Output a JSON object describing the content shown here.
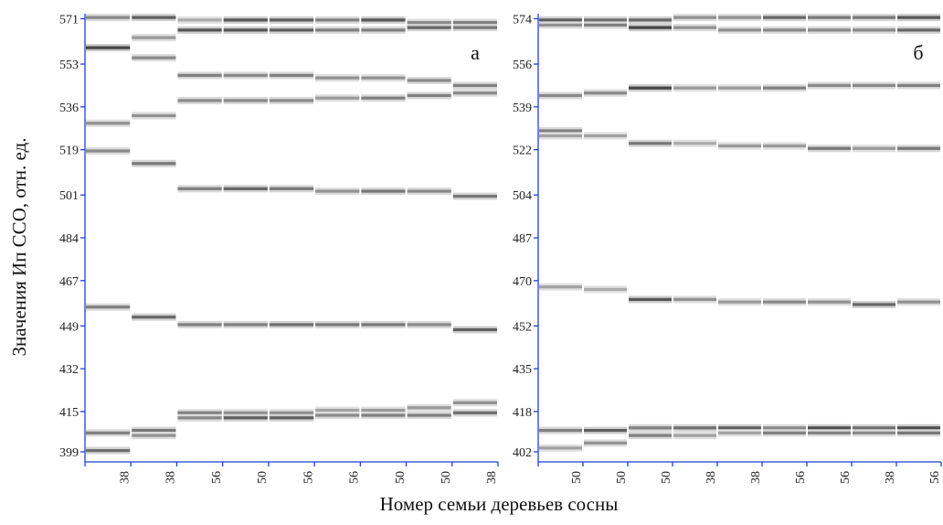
{
  "figure": {
    "ylabel": "Значения Ип ССО, отн. ед.",
    "xlabel": "Номер семьи деревьев сосны"
  },
  "chart_data": [
    {
      "type": "gel",
      "panel_label": "а",
      "yticks": [
        399,
        415,
        432,
        449,
        467,
        484,
        501,
        519,
        536,
        553,
        571
      ],
      "ylim": [
        395,
        573
      ],
      "lanes": [
        "38",
        "38",
        "56",
        "50",
        "56",
        "56",
        "50",
        "50",
        "38"
      ],
      "bands": [
        [
          [
            571.5,
            0.55
          ],
          [
            559.5,
            0.95
          ],
          [
            529.5,
            0.5
          ],
          [
            518.5,
            0.55
          ],
          [
            456.5,
            0.6
          ],
          [
            406.5,
            0.6
          ],
          [
            399.5,
            0.7
          ]
        ],
        [
          [
            571.5,
            0.8
          ],
          [
            563.5,
            0.45
          ],
          [
            555.5,
            0.55
          ],
          [
            532.5,
            0.5
          ],
          [
            513.5,
            0.65
          ],
          [
            452.5,
            0.75
          ],
          [
            407.5,
            0.65
          ],
          [
            405.5,
            0.5
          ]
        ],
        [
          [
            570.5,
            0.35
          ],
          [
            566.5,
            0.85
          ],
          [
            548.5,
            0.6
          ],
          [
            538.5,
            0.55
          ],
          [
            503.5,
            0.6
          ],
          [
            449.5,
            0.6
          ],
          [
            414.5,
            0.6
          ],
          [
            412.5,
            0.55
          ]
        ],
        [
          [
            570.5,
            0.85
          ],
          [
            566.5,
            0.85
          ],
          [
            548.5,
            0.55
          ],
          [
            538.5,
            0.55
          ],
          [
            503.5,
            0.75
          ],
          [
            449.5,
            0.6
          ],
          [
            414.5,
            0.5
          ],
          [
            412.5,
            0.8
          ]
        ],
        [
          [
            570.5,
            0.8
          ],
          [
            566.5,
            0.8
          ],
          [
            548.5,
            0.6
          ],
          [
            538.5,
            0.55
          ],
          [
            503.5,
            0.65
          ],
          [
            449.5,
            0.7
          ],
          [
            414.5,
            0.5
          ],
          [
            412.5,
            0.8
          ]
        ],
        [
          [
            570.5,
            0.6
          ],
          [
            566.5,
            0.6
          ],
          [
            547.5,
            0.5
          ],
          [
            539.5,
            0.45
          ],
          [
            502.5,
            0.5
          ],
          [
            449.5,
            0.65
          ],
          [
            415.5,
            0.4
          ],
          [
            413.5,
            0.55
          ]
        ],
        [
          [
            570.5,
            0.85
          ],
          [
            566.5,
            0.6
          ],
          [
            547.5,
            0.5
          ],
          [
            539.5,
            0.6
          ],
          [
            502.5,
            0.65
          ],
          [
            449.5,
            0.65
          ],
          [
            415.5,
            0.45
          ],
          [
            413.5,
            0.6
          ]
        ],
        [
          [
            569.5,
            0.55
          ],
          [
            567.5,
            0.75
          ],
          [
            546.5,
            0.55
          ],
          [
            540.5,
            0.6
          ],
          [
            502.5,
            0.55
          ],
          [
            449.5,
            0.55
          ],
          [
            416.5,
            0.45
          ],
          [
            413.5,
            0.6
          ]
        ],
        [
          [
            569.5,
            0.6
          ],
          [
            567.5,
            0.65
          ],
          [
            544.5,
            0.6
          ],
          [
            541.5,
            0.55
          ],
          [
            500.5,
            0.65
          ],
          [
            447.5,
            0.8
          ],
          [
            418.5,
            0.5
          ],
          [
            414.5,
            0.7
          ]
        ]
      ]
    },
    {
      "type": "gel",
      "panel_label": "б",
      "yticks": [
        402,
        418,
        435,
        452,
        470,
        487,
        504,
        522,
        539,
        556,
        574
      ],
      "ylim": [
        398,
        576
      ],
      "lanes": [
        "50",
        "50",
        "50",
        "38",
        "38",
        "56",
        "56",
        "38",
        "56"
      ],
      "bands": [
        [
          [
            573.5,
            0.8
          ],
          [
            571.5,
            0.5
          ],
          [
            543.5,
            0.55
          ],
          [
            529.5,
            0.6
          ],
          [
            527.5,
            0.4
          ],
          [
            467.5,
            0.4
          ],
          [
            410.5,
            0.6
          ],
          [
            403.5,
            0.4
          ]
        ],
        [
          [
            573.5,
            0.7
          ],
          [
            571.5,
            0.6
          ],
          [
            544.5,
            0.55
          ],
          [
            527.5,
            0.4
          ],
          [
            466.5,
            0.35
          ],
          [
            410.5,
            0.8
          ],
          [
            405.5,
            0.5
          ]
        ],
        [
          [
            573.5,
            0.75
          ],
          [
            570.5,
            0.95
          ],
          [
            546.5,
            0.95
          ],
          [
            524.5,
            0.65
          ],
          [
            462.5,
            0.85
          ],
          [
            411.5,
            0.6
          ],
          [
            408.5,
            0.6
          ]
        ],
        [
          [
            574.5,
            0.5
          ],
          [
            570.5,
            0.5
          ],
          [
            546.5,
            0.45
          ],
          [
            524.5,
            0.35
          ],
          [
            462.5,
            0.5
          ],
          [
            411.5,
            0.7
          ],
          [
            408.5,
            0.4
          ]
        ],
        [
          [
            574.5,
            0.5
          ],
          [
            569.5,
            0.5
          ],
          [
            546.5,
            0.45
          ],
          [
            523.5,
            0.45
          ],
          [
            461.5,
            0.45
          ],
          [
            411.5,
            0.8
          ],
          [
            409.5,
            0.4
          ]
        ],
        [
          [
            574.5,
            0.75
          ],
          [
            569.5,
            0.55
          ],
          [
            546.5,
            0.6
          ],
          [
            523.5,
            0.45
          ],
          [
            461.5,
            0.55
          ],
          [
            411.5,
            0.55
          ],
          [
            409.5,
            0.6
          ]
        ],
        [
          [
            574.5,
            0.65
          ],
          [
            569.5,
            0.55
          ],
          [
            547.5,
            0.55
          ],
          [
            522.5,
            0.65
          ],
          [
            461.5,
            0.5
          ],
          [
            411.5,
            0.9
          ],
          [
            409.5,
            0.6
          ]
        ],
        [
          [
            574.5,
            0.65
          ],
          [
            569.5,
            0.55
          ],
          [
            547.5,
            0.55
          ],
          [
            522.5,
            0.45
          ],
          [
            460.5,
            0.75
          ],
          [
            411.5,
            0.7
          ],
          [
            409.5,
            0.55
          ]
        ],
        [
          [
            574.5,
            0.85
          ],
          [
            569.5,
            0.75
          ],
          [
            547.5,
            0.6
          ],
          [
            522.5,
            0.65
          ],
          [
            461.5,
            0.5
          ],
          [
            411.5,
            0.9
          ],
          [
            409.5,
            0.65
          ]
        ]
      ]
    }
  ]
}
